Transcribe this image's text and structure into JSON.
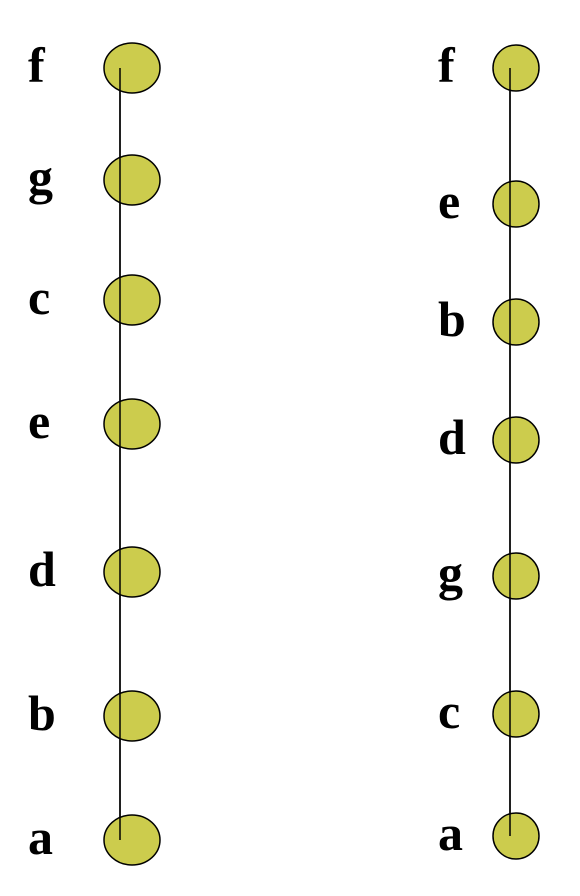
{
  "colors": {
    "node_fill": "#cccc4d",
    "node_stroke": "#000000",
    "edge": "#000000",
    "background": "#ffffff"
  },
  "chains": [
    {
      "labels": [
        "f",
        "g",
        "c",
        "e",
        "d",
        "b",
        "a"
      ]
    },
    {
      "labels": [
        "f",
        "e",
        "b",
        "d",
        "g",
        "c",
        "a"
      ]
    }
  ]
}
